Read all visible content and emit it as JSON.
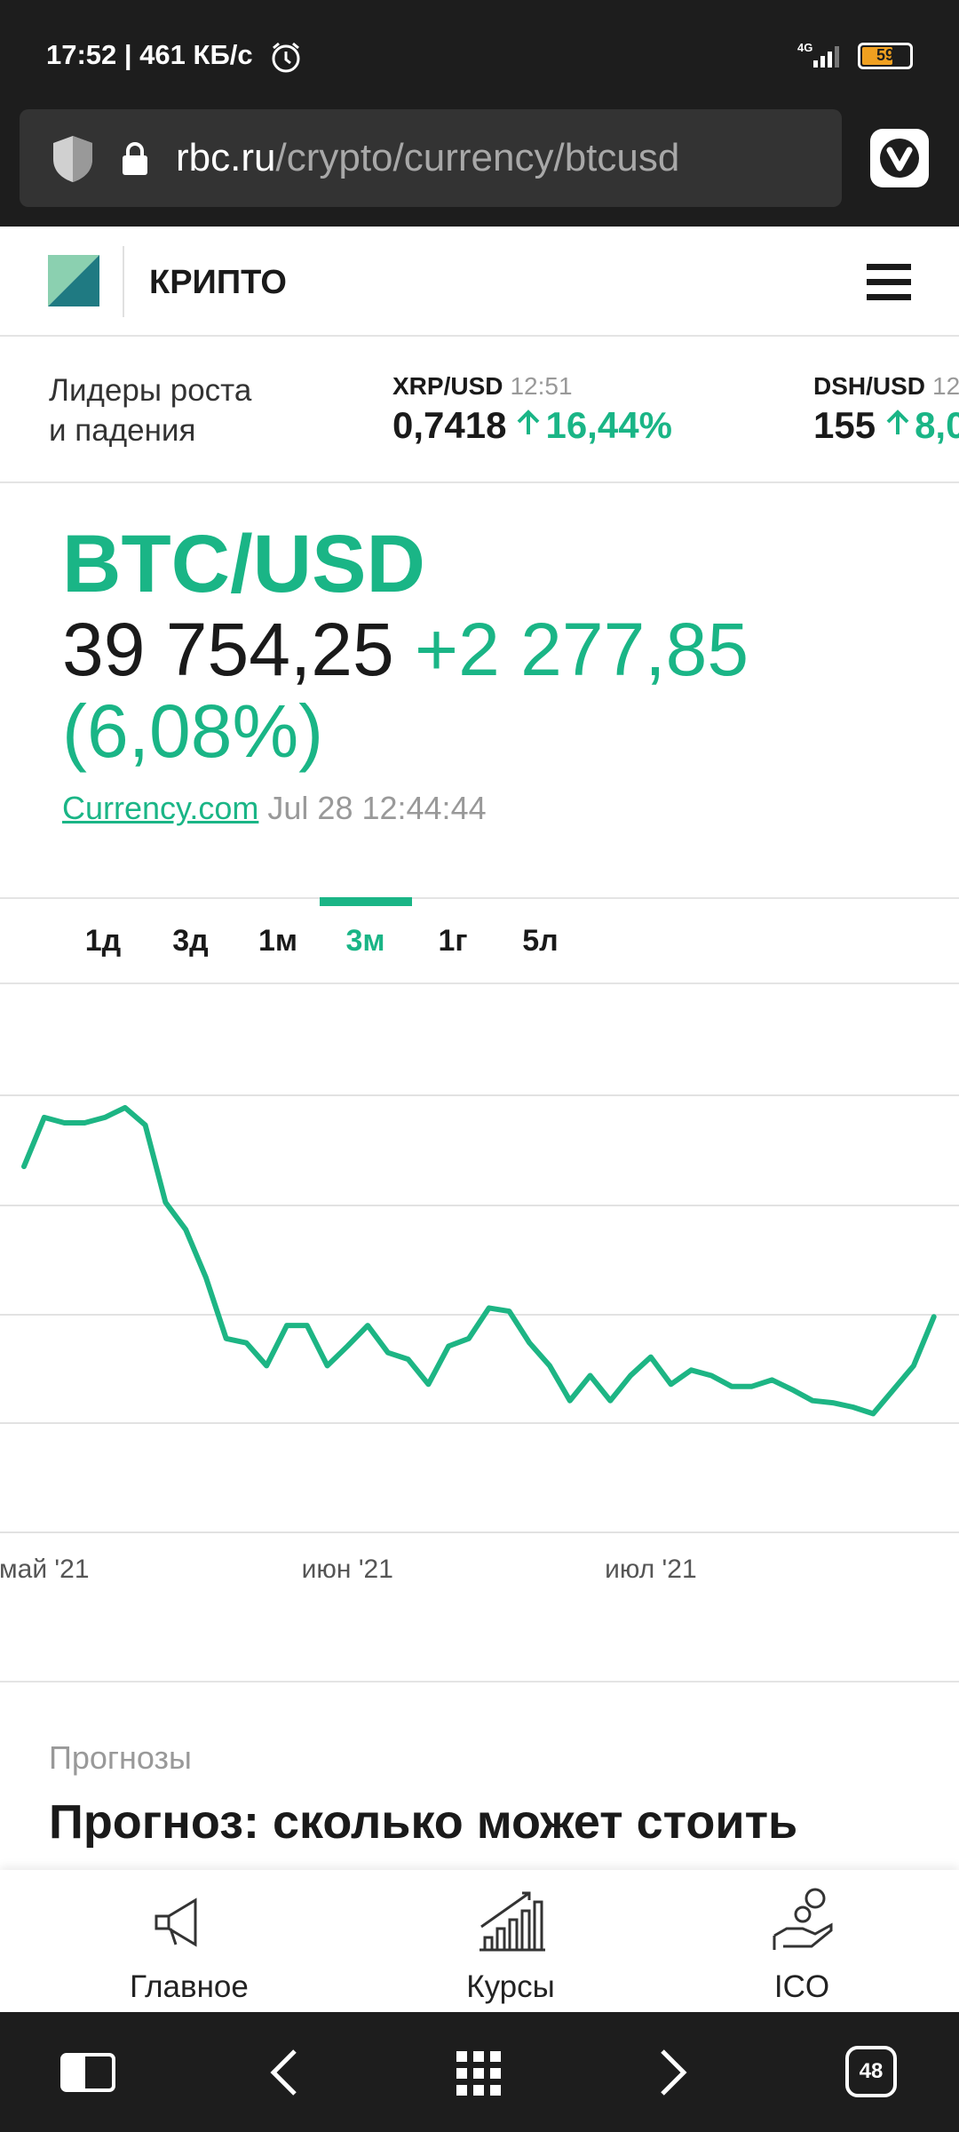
{
  "status_bar": {
    "time_speed": "17:52 | 461 КБ/с",
    "network": "4G",
    "battery": "59"
  },
  "browser": {
    "domain": "rbc.ru",
    "path": "/crypto/currency/btcusd",
    "tabs": "48"
  },
  "header": {
    "section": "КРИПТО"
  },
  "ticker": {
    "label": [
      "Лидеры роста",
      "и падения"
    ],
    "items": [
      {
        "pair": "XRP/USD",
        "time": "12:51",
        "price": "0,7418",
        "change": "16,44%"
      },
      {
        "pair": "DSH/USD",
        "time": "12",
        "price": "155",
        "change": "8,0"
      }
    ]
  },
  "quote": {
    "title": "BTC/USD",
    "price": "39 754,25",
    "change": "+2 277,85",
    "change_pct": "(6,08%)",
    "source": "Currency.com",
    "timestamp": "Jul 28 12:44:44"
  },
  "periods": {
    "items": [
      "1д",
      "3д",
      "1м",
      "3м",
      "1г",
      "5л"
    ],
    "active": 3
  },
  "chart_data": {
    "type": "line",
    "color": "#1db584",
    "grid": true,
    "ylim": [
      20000,
      70000
    ],
    "categories": [
      null,
      "май '21",
      null,
      null,
      null,
      null,
      null,
      null,
      null,
      null,
      null,
      null,
      null,
      null,
      null,
      null,
      "июн '21",
      null,
      null,
      null,
      null,
      null,
      null,
      null,
      null,
      null,
      null,
      null,
      null,
      null,
      null,
      "июл '21",
      null,
      null,
      null,
      null,
      null,
      null,
      null,
      null,
      null,
      null,
      null,
      null,
      null,
      null
    ],
    "values": [
      53600,
      58100,
      57600,
      57600,
      58100,
      59000,
      57400,
      50300,
      47800,
      43400,
      37800,
      37400,
      35300,
      39000,
      39000,
      35300,
      37100,
      39000,
      36500,
      35900,
      33600,
      37100,
      37800,
      40600,
      40300,
      37400,
      35300,
      32100,
      34400,
      32100,
      34400,
      36100,
      33600,
      34900,
      34400,
      33400,
      33400,
      34000,
      33100,
      32100,
      31900,
      31500,
      30900,
      33100,
      35300,
      39800
    ]
  },
  "article": {
    "category": "Прогнозы",
    "headline": "Прогноз: сколько может стоить"
  },
  "bottom_nav": {
    "items": [
      "Главное",
      "Курсы",
      "ICO"
    ]
  }
}
